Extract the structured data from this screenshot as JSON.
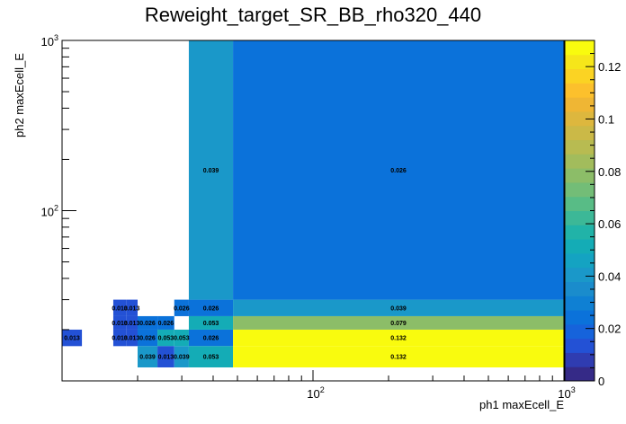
{
  "chart_data": {
    "type": "heatmap",
    "title": "Reweight_target_SR_BB_rho320_440",
    "xlabel": "ph1 maxEcell_E",
    "ylabel": "ph2 maxEcell_E",
    "x_scale": "log",
    "y_scale": "log",
    "xlim": [
      10,
      1000
    ],
    "ylim": [
      10,
      1000
    ],
    "x_tick_labels": [
      "10^2",
      "10^3"
    ],
    "y_tick_labels": [
      "10^2",
      "10^3"
    ],
    "z_range": [
      0,
      0.13
    ],
    "colorbar_ticks": [
      "0",
      "0.02",
      "0.04",
      "0.06",
      "0.08",
      "0.1",
      "0.12"
    ],
    "x_edges": [
      10,
      12,
      16,
      18,
      20,
      24,
      28,
      32,
      48,
      1000
    ],
    "y_edges": [
      12,
      16,
      20,
      24,
      30,
      1000
    ],
    "cells": [
      {
        "x": [
          10,
          12
        ],
        "y": [
          16,
          20
        ],
        "value": 0.013,
        "label": "0.013"
      },
      {
        "x": [
          16,
          18
        ],
        "y": [
          16,
          20
        ],
        "value": 0.013,
        "label": "0.013"
      },
      {
        "x": [
          18,
          20
        ],
        "y": [
          16,
          20
        ],
        "value": 0.013,
        "label": "0.013"
      },
      {
        "x": [
          20,
          24
        ],
        "y": [
          16,
          20
        ],
        "value": 0.026,
        "label": "0.026"
      },
      {
        "x": [
          24,
          28
        ],
        "y": [
          16,
          20
        ],
        "value": 0.053,
        "label": "0.053"
      },
      {
        "x": [
          28,
          32
        ],
        "y": [
          16,
          20
        ],
        "value": 0.053,
        "label": "0.053"
      },
      {
        "x": [
          32,
          48
        ],
        "y": [
          16,
          20
        ],
        "value": 0.026,
        "label": "0.026"
      },
      {
        "x": [
          48,
          1000
        ],
        "y": [
          16,
          20
        ],
        "value": 0.132,
        "label": "0.132"
      },
      {
        "x": [
          20,
          24
        ],
        "y": [
          12,
          16
        ],
        "value": 0.039,
        "label": "0.039"
      },
      {
        "x": [
          24,
          28
        ],
        "y": [
          12,
          16
        ],
        "value": 0.013,
        "label": "0.013"
      },
      {
        "x": [
          28,
          32
        ],
        "y": [
          12,
          16
        ],
        "value": 0.039,
        "label": "0.039"
      },
      {
        "x": [
          32,
          48
        ],
        "y": [
          12,
          16
        ],
        "value": 0.053,
        "label": "0.053"
      },
      {
        "x": [
          48,
          1000
        ],
        "y": [
          12,
          16
        ],
        "value": 0.132,
        "label": "0.132"
      },
      {
        "x": [
          16,
          18
        ],
        "y": [
          20,
          24
        ],
        "value": 0.013,
        "label": "0.013"
      },
      {
        "x": [
          18,
          20
        ],
        "y": [
          20,
          24
        ],
        "value": 0.013,
        "label": "0.013"
      },
      {
        "x": [
          20,
          24
        ],
        "y": [
          20,
          24
        ],
        "value": 0.026,
        "label": "0.026"
      },
      {
        "x": [
          24,
          28
        ],
        "y": [
          20,
          24
        ],
        "value": 0.026,
        "label": "0.026"
      },
      {
        "x": [
          32,
          48
        ],
        "y": [
          20,
          24
        ],
        "value": 0.053,
        "label": "0.053"
      },
      {
        "x": [
          48,
          1000
        ],
        "y": [
          20,
          24
        ],
        "value": 0.079,
        "label": "0.079"
      },
      {
        "x": [
          16,
          18
        ],
        "y": [
          24,
          30
        ],
        "value": 0.013,
        "label": "0.013"
      },
      {
        "x": [
          18,
          20
        ],
        "y": [
          24,
          30
        ],
        "value": 0.013,
        "label": "0.013"
      },
      {
        "x": [
          28,
          32
        ],
        "y": [
          24,
          30
        ],
        "value": 0.026,
        "label": "0.026"
      },
      {
        "x": [
          32,
          48
        ],
        "y": [
          24,
          30
        ],
        "value": 0.026,
        "label": "0.026"
      },
      {
        "x": [
          48,
          1000
        ],
        "y": [
          24,
          30
        ],
        "value": 0.039,
        "label": "0.039"
      },
      {
        "x": [
          32,
          48
        ],
        "y": [
          30,
          1000
        ],
        "value": 0.039,
        "label": "0.039"
      },
      {
        "x": [
          48,
          1000
        ],
        "y": [
          30,
          1000
        ],
        "value": 0.026,
        "label": "0.026"
      }
    ],
    "palette": [
      "#352a87",
      "#2f3cb1",
      "#2351d5",
      "#1663db",
      "#0b72da",
      "#0f80d3",
      "#1a8ccc",
      "#1a98c9",
      "#14a3c2",
      "#14acb6",
      "#21b3a8",
      "#3cb897",
      "#58bc86",
      "#73bd77",
      "#8cbd68",
      "#a2bc5c",
      "#b8bb51",
      "#cbb947",
      "#ddb73e",
      "#efb634",
      "#fcc02c",
      "#fbd323",
      "#f6e61a",
      "#f9fb0e"
    ]
  }
}
